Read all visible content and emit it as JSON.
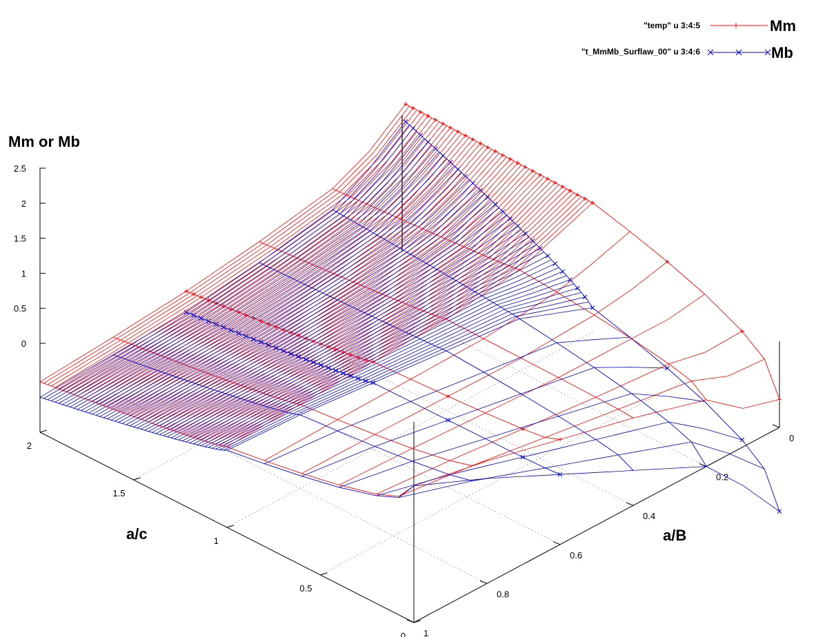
{
  "chart_data": {
    "type": "surface3d",
    "zlabel": "Mm or Mb",
    "xlabel": "a/c",
    "ylabel": "a/B",
    "xlim": [
      0,
      2
    ],
    "ylim": [
      0,
      1
    ],
    "zlim": [
      0,
      2.5
    ],
    "z_ticks": [
      "0",
      "0.5",
      "1",
      "1.5",
      "2",
      "2.5"
    ],
    "x_ticks": [
      "0",
      "0.5",
      "1",
      "1.5",
      "2"
    ],
    "y_ticks": [
      "0",
      "0.2",
      "0.4",
      "0.6",
      "0.8",
      "1"
    ],
    "grid": true,
    "legend_position": "top-right",
    "series": [
      {
        "name": "Mm",
        "expr": "\"temp\" u 3:4:5",
        "color": "#ff0000",
        "marker": "plus",
        "values_at_ac2": [
          0.72,
          0.8,
          0.9,
          1.05,
          1.25,
          1.5,
          1.9
        ],
        "values_at_ac1": [
          1.15,
          1.2,
          1.25,
          1.3,
          1.45,
          1.65,
          1.85
        ],
        "values_at_ac0": [
          1.95,
          1.75,
          1.5,
          1.25,
          0.95,
          0.55,
          0.4
        ]
      },
      {
        "name": "Mb",
        "expr": "\"t_MmMb_Surflaw_00\" u 3:4:6",
        "color": "#0000cc",
        "marker": "cross",
        "values_at_ac2": [
          0.5,
          0.55,
          0.6,
          0.75,
          0.95,
          1.25,
          1.65
        ],
        "values_at_ac1": [
          1.1,
          1.05,
          0.95,
          0.85,
          0.75,
          0.55,
          0.35
        ],
        "values_at_ac0": [
          1.95,
          1.5,
          1.0,
          0.5,
          0.0,
          -0.55,
          -1.2
        ]
      }
    ]
  }
}
